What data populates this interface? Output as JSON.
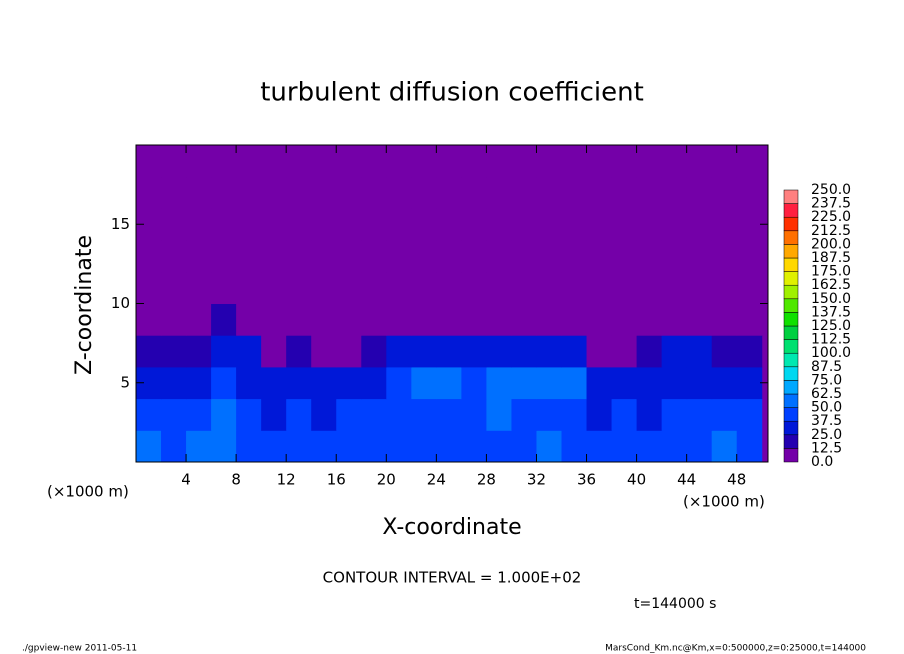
{
  "chart_data": {
    "type": "heatmap",
    "title": "turbulent diffusion coefficient",
    "xlabel": "X-coordinate",
    "ylabel": "Z-coordinate",
    "x_unit_left": "(×1000 m)",
    "x_unit_right": "(×1000 m)",
    "xlim": [
      0,
      50.5
    ],
    "ylim": [
      0,
      20
    ],
    "xticks": [
      4,
      8,
      12,
      16,
      20,
      24,
      28,
      32,
      36,
      40,
      44,
      48
    ],
    "yticks": [
      5,
      10,
      15
    ],
    "xbins": [
      0,
      2,
      4,
      6,
      8,
      10,
      12,
      14,
      16,
      18,
      20,
      22,
      24,
      26,
      28,
      30,
      32,
      34,
      36,
      38,
      40,
      42,
      44,
      46,
      48,
      50
    ],
    "ybins": [
      0,
      2,
      4,
      6,
      8,
      10,
      12,
      14,
      16,
      18,
      20
    ],
    "z": [
      [
        50,
        45,
        55,
        60,
        45,
        40,
        45,
        40,
        45,
        40,
        45,
        40,
        45,
        45,
        40,
        45,
        50,
        45,
        40,
        45,
        40,
        45,
        45,
        50,
        45
      ],
      [
        40,
        40,
        45,
        50,
        40,
        35,
        40,
        35,
        40,
        45,
        40,
        40,
        40,
        45,
        50,
        45,
        45,
        40,
        35,
        40,
        35,
        40,
        40,
        45,
        40
      ],
      [
        30,
        35,
        30,
        45,
        30,
        30,
        35,
        30,
        25,
        35,
        45,
        50,
        55,
        45,
        55,
        50,
        55,
        50,
        30,
        25,
        30,
        35,
        30,
        35,
        30
      ],
      [
        20,
        15,
        20,
        30,
        25,
        10,
        15,
        5,
        5,
        15,
        25,
        30,
        35,
        30,
        25,
        30,
        35,
        25,
        5,
        5,
        15,
        25,
        25,
        20,
        15
      ],
      [
        0,
        0,
        0,
        15,
        5,
        0,
        5,
        0,
        0,
        0,
        0,
        5,
        5,
        0,
        0,
        0,
        10,
        5,
        0,
        0,
        0,
        0,
        0,
        0,
        0
      ],
      [
        0,
        0,
        0,
        0,
        0,
        0,
        0,
        0,
        0,
        0,
        0,
        0,
        0,
        0,
        0,
        0,
        0,
        0,
        0,
        0,
        0,
        0,
        0,
        0,
        0
      ],
      [
        0,
        0,
        0,
        0,
        0,
        0,
        0,
        0,
        0,
        0,
        0,
        0,
        0,
        0,
        0,
        0,
        5,
        5,
        5,
        0,
        0,
        0,
        0,
        0,
        0
      ],
      [
        0,
        0,
        0,
        0,
        0,
        0,
        0,
        0,
        0,
        0,
        0,
        0,
        0,
        0,
        0,
        0,
        5,
        5,
        5,
        0,
        0,
        0,
        0,
        0,
        0
      ],
      [
        0,
        0,
        0,
        0,
        0,
        5,
        0,
        0,
        0,
        0,
        0,
        0,
        0,
        0,
        0,
        0,
        0,
        0,
        0,
        0,
        0,
        0,
        0,
        0,
        0
      ],
      [
        0,
        0,
        0,
        0,
        0,
        0,
        0,
        0,
        0,
        0,
        0,
        0,
        0,
        0,
        0,
        0,
        0,
        0,
        0,
        0,
        0,
        0,
        0,
        0,
        0
      ]
    ],
    "colorbar": {
      "levels": [
        {
          "value": 0,
          "label": "0.0"
        },
        {
          "value": 12.5,
          "label": "12.5"
        },
        {
          "value": 25,
          "label": "25.0"
        },
        {
          "value": 37.5,
          "label": "37.5"
        },
        {
          "value": 50,
          "label": "50.0"
        },
        {
          "value": 62.5,
          "label": "62.5"
        },
        {
          "value": 75,
          "label": "75.0"
        },
        {
          "value": 87.5,
          "label": "87.5"
        },
        {
          "value": 100,
          "label": "100.0"
        },
        {
          "value": 112.5,
          "label": "112.5"
        },
        {
          "value": 125,
          "label": "125.0"
        },
        {
          "value": 137.5,
          "label": "137.5"
        },
        {
          "value": 150,
          "label": "150.0"
        },
        {
          "value": 162.5,
          "label": "162.5"
        },
        {
          "value": 175,
          "label": "175.0"
        },
        {
          "value": 187.5,
          "label": "187.5"
        },
        {
          "value": 200,
          "label": "200.0"
        },
        {
          "value": 212.5,
          "label": "212.5"
        },
        {
          "value": 225,
          "label": "225.0"
        },
        {
          "value": 237.5,
          "label": "237.5"
        },
        {
          "value": 250,
          "label": "250.0"
        }
      ],
      "colors": [
        "#7400a8",
        "#2400b0",
        "#0018d8",
        "#0040ff",
        "#0070ff",
        "#00a8ff",
        "#00d8f0",
        "#00e8b0",
        "#00e070",
        "#00d040",
        "#10e000",
        "#50e800",
        "#a0f000",
        "#e0f000",
        "#ffd800",
        "#ffa800",
        "#ff7000",
        "#ff3000",
        "#ff2040",
        "#ff8080"
      ]
    },
    "contour_note": "CONTOUR INTERVAL = 1.000E+02",
    "time_label": "t=144000 s",
    "footer_left": "./gpview-new  2011-05-11",
    "footer_right": "MarsCond_Km.nc@Km,x=0:500000,z=0:25000,t=144000"
  }
}
